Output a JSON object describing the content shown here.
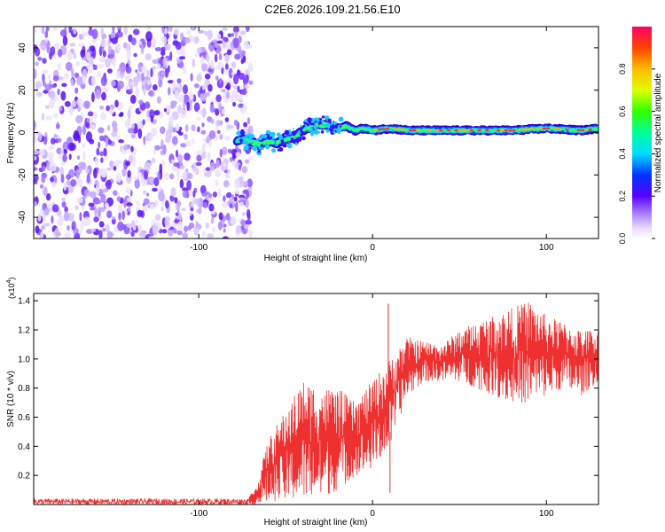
{
  "title": "C2E6.2026.109.21.56.E10",
  "chart_data": [
    {
      "type": "heatmap",
      "title": "",
      "xlabel": "Height of straight line (km)",
      "ylabel": "Frequency (Hz)",
      "xlim": [
        -195,
        130
      ],
      "ylim": [
        -50,
        50
      ],
      "xticks": [
        -100,
        0,
        100
      ],
      "yticks": [
        -40,
        -20,
        0,
        20,
        40
      ],
      "noise_region_x": [
        -195,
        -72
      ],
      "ridge": [
        {
          "x": -78,
          "y": -4
        },
        {
          "x": -75,
          "y": -3
        },
        {
          "x": -70,
          "y": -4
        },
        {
          "x": -65,
          "y": -6
        },
        {
          "x": -60,
          "y": -4
        },
        {
          "x": -55,
          "y": -5
        },
        {
          "x": -50,
          "y": -3
        },
        {
          "x": -45,
          "y": -2
        },
        {
          "x": -40,
          "y": 1
        },
        {
          "x": -35,
          "y": 3
        },
        {
          "x": -30,
          "y": 4
        },
        {
          "x": -25,
          "y": 3
        },
        {
          "x": -20,
          "y": 2
        },
        {
          "x": -15,
          "y": 3
        },
        {
          "x": -10,
          "y": 1
        },
        {
          "x": -5,
          "y": 2
        },
        {
          "x": 0,
          "y": 1
        },
        {
          "x": 10,
          "y": 2
        },
        {
          "x": 20,
          "y": 1
        },
        {
          "x": 40,
          "y": 1
        },
        {
          "x": 60,
          "y": 1
        },
        {
          "x": 80,
          "y": 1
        },
        {
          "x": 100,
          "y": 2
        },
        {
          "x": 120,
          "y": 1
        },
        {
          "x": 130,
          "y": 2
        }
      ],
      "colorbar": {
        "label": "Normalized spectral amplitude",
        "range": [
          0,
          1
        ],
        "ticks": [
          0.0,
          0.2,
          0.4,
          0.6,
          0.8
        ],
        "tick_labels": [
          "0.0",
          "0.2",
          "0.4",
          "0.6",
          "0.8"
        ]
      }
    },
    {
      "type": "line",
      "title": "",
      "xlabel": "Height of straight line (km)",
      "ylabel": "SNR (10 * v/v)",
      "y_multiplier": "(x10",
      "y_multiplier_exp": "4",
      "y_multiplier_close": ")",
      "xlim": [
        -195,
        130
      ],
      "ylim": [
        0,
        1.45
      ],
      "xticks": [
        -100,
        0,
        100
      ],
      "yticks": [
        0.2,
        0.4,
        0.6,
        0.8,
        1.0,
        1.2,
        1.4
      ],
      "ytick_labels": [
        "0.2",
        "0.4",
        "0.6",
        "0.8",
        "1.0",
        "1.2",
        "1.4"
      ],
      "series": [
        {
          "name": "SNR",
          "color": "#ee3030",
          "envelope": [
            {
              "x": -195,
              "low": 0.0,
              "high": 0.04
            },
            {
              "x": -72,
              "low": 0.0,
              "high": 0.04
            },
            {
              "x": -67,
              "low": 0.0,
              "high": 0.12
            },
            {
              "x": -60,
              "low": 0.02,
              "high": 0.45
            },
            {
              "x": -50,
              "low": 0.03,
              "high": 0.65
            },
            {
              "x": -40,
              "low": 0.05,
              "high": 0.85
            },
            {
              "x": -30,
              "low": 0.05,
              "high": 0.8
            },
            {
              "x": -20,
              "low": 0.1,
              "high": 0.8
            },
            {
              "x": -10,
              "low": 0.2,
              "high": 0.7
            },
            {
              "x": 0,
              "low": 0.25,
              "high": 0.85
            },
            {
              "x": 10,
              "low": 0.4,
              "high": 1.0
            },
            {
              "x": 20,
              "low": 0.75,
              "high": 1.15
            },
            {
              "x": 30,
              "low": 0.85,
              "high": 1.12
            },
            {
              "x": 40,
              "low": 0.85,
              "high": 1.1
            },
            {
              "x": 50,
              "low": 0.85,
              "high": 1.2
            },
            {
              "x": 60,
              "low": 0.8,
              "high": 1.25
            },
            {
              "x": 70,
              "low": 0.75,
              "high": 1.3
            },
            {
              "x": 80,
              "low": 0.7,
              "high": 1.35
            },
            {
              "x": 90,
              "low": 0.7,
              "high": 1.4
            },
            {
              "x": 100,
              "low": 0.75,
              "high": 1.3
            },
            {
              "x": 110,
              "low": 0.8,
              "high": 1.25
            },
            {
              "x": 120,
              "low": 0.75,
              "high": 1.2
            },
            {
              "x": 130,
              "low": 0.85,
              "high": 1.2
            }
          ],
          "spikes": [
            {
              "x": 9,
              "y": 1.38
            },
            {
              "x": 10,
              "y": 0.08
            }
          ]
        }
      ]
    }
  ]
}
